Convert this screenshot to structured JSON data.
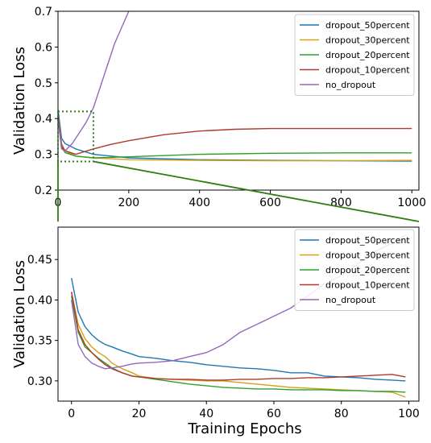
{
  "chart_data": [
    {
      "type": "line",
      "ylabel": "Validation Loss",
      "xlim": [
        0,
        1020
      ],
      "ylim": [
        0.2,
        0.7
      ],
      "x_ticks": [
        0,
        200,
        400,
        600,
        800,
        1000
      ],
      "y_ticks": [
        0.2,
        0.3,
        0.4,
        0.5,
        0.6,
        0.7
      ],
      "legend_position": "top-right",
      "grid": false,
      "series": [
        {
          "name": "dropout_50percent",
          "color": "#1f77b4",
          "x": [
            0,
            10,
            20,
            50,
            100,
            200,
            400,
            600,
            800,
            1000
          ],
          "values": [
            0.425,
            0.345,
            0.33,
            0.315,
            0.3,
            0.29,
            0.285,
            0.283,
            0.282,
            0.281
          ]
        },
        {
          "name": "dropout_30percent",
          "color": "#d4a017",
          "x": [
            0,
            10,
            20,
            50,
            100,
            200,
            400,
            600,
            800,
            1000
          ],
          "values": [
            0.41,
            0.33,
            0.31,
            0.295,
            0.29,
            0.285,
            0.283,
            0.282,
            0.282,
            0.283
          ]
        },
        {
          "name": "dropout_20percent",
          "color": "#2ca02c",
          "x": [
            0,
            10,
            20,
            50,
            100,
            200,
            400,
            600,
            800,
            1000
          ],
          "values": [
            0.405,
            0.32,
            0.305,
            0.295,
            0.29,
            0.293,
            0.3,
            0.303,
            0.304,
            0.304
          ]
        },
        {
          "name": "dropout_10percent",
          "color": "#b03a2e",
          "x": [
            0,
            10,
            20,
            50,
            100,
            150,
            200,
            300,
            400,
            500,
            600,
            800,
            1000
          ],
          "values": [
            0.41,
            0.325,
            0.31,
            0.3,
            0.315,
            0.328,
            0.338,
            0.355,
            0.365,
            0.37,
            0.372,
            0.372,
            0.372
          ]
        },
        {
          "name": "no_dropout",
          "color": "#9467bd",
          "x": [
            0,
            10,
            20,
            40,
            60,
            80,
            100,
            130,
            160,
            200
          ],
          "values": [
            0.4,
            0.315,
            0.31,
            0.33,
            0.36,
            0.39,
            0.43,
            0.52,
            0.61,
            0.7
          ]
        }
      ]
    },
    {
      "type": "line",
      "xlabel": "Training Epochs",
      "ylabel": "Validation Loss",
      "xlim": [
        -4,
        103
      ],
      "ylim": [
        0.275,
        0.49
      ],
      "x_ticks": [
        0,
        20,
        40,
        60,
        80,
        100
      ],
      "y_ticks": [
        0.3,
        0.35,
        0.4,
        0.45
      ],
      "y_tick_labels": [
        "0.30",
        "0.35",
        "0.40",
        "0.45"
      ],
      "legend_position": "top-right",
      "grid": false,
      "series": [
        {
          "name": "dropout_50percent",
          "color": "#1f77b4",
          "x": [
            0,
            2,
            4,
            6,
            8,
            10,
            12,
            15,
            18,
            20,
            25,
            30,
            35,
            40,
            45,
            50,
            55,
            60,
            65,
            70,
            75,
            80,
            85,
            90,
            95,
            99
          ],
          "values": [
            0.427,
            0.385,
            0.367,
            0.357,
            0.35,
            0.345,
            0.342,
            0.337,
            0.333,
            0.33,
            0.328,
            0.325,
            0.323,
            0.32,
            0.318,
            0.316,
            0.315,
            0.313,
            0.31,
            0.31,
            0.306,
            0.305,
            0.304,
            0.302,
            0.301,
            0.3
          ]
        },
        {
          "name": "dropout_30percent",
          "color": "#d4a017",
          "x": [
            0,
            2,
            4,
            6,
            8,
            10,
            12,
            15,
            18,
            20,
            25,
            30,
            35,
            40,
            45,
            50,
            55,
            60,
            65,
            70,
            75,
            80,
            85,
            90,
            95,
            99
          ],
          "values": [
            0.41,
            0.37,
            0.352,
            0.342,
            0.335,
            0.33,
            0.322,
            0.315,
            0.31,
            0.306,
            0.303,
            0.302,
            0.301,
            0.3,
            0.3,
            0.298,
            0.296,
            0.294,
            0.292,
            0.291,
            0.29,
            0.289,
            0.288,
            0.287,
            0.286,
            0.28
          ]
        },
        {
          "name": "dropout_20percent",
          "color": "#2ca02c",
          "x": [
            0,
            2,
            4,
            6,
            8,
            10,
            12,
            15,
            18,
            20,
            25,
            30,
            35,
            40,
            45,
            50,
            55,
            60,
            65,
            70,
            75,
            80,
            85,
            90,
            95,
            99
          ],
          "values": [
            0.405,
            0.36,
            0.342,
            0.335,
            0.328,
            0.322,
            0.316,
            0.31,
            0.306,
            0.305,
            0.302,
            0.299,
            0.296,
            0.294,
            0.292,
            0.291,
            0.29,
            0.29,
            0.289,
            0.289,
            0.289,
            0.288,
            0.288,
            0.287,
            0.287,
            0.286
          ]
        },
        {
          "name": "dropout_10percent",
          "color": "#b03a2e",
          "x": [
            0,
            2,
            4,
            6,
            8,
            10,
            12,
            15,
            18,
            20,
            25,
            30,
            35,
            40,
            45,
            50,
            55,
            60,
            65,
            70,
            75,
            80,
            85,
            90,
            95,
            99
          ],
          "values": [
            0.41,
            0.363,
            0.345,
            0.335,
            0.327,
            0.32,
            0.315,
            0.31,
            0.306,
            0.305,
            0.303,
            0.302,
            0.302,
            0.301,
            0.301,
            0.302,
            0.302,
            0.303,
            0.303,
            0.304,
            0.304,
            0.305,
            0.306,
            0.307,
            0.308,
            0.305
          ]
        },
        {
          "name": "no_dropout",
          "color": "#9467bd",
          "x": [
            0,
            2,
            4,
            6,
            8,
            10,
            12,
            15,
            18,
            20,
            25,
            30,
            35,
            40,
            45,
            50,
            55,
            60,
            65,
            70,
            75,
            80,
            85,
            90,
            95,
            99
          ],
          "values": [
            0.4,
            0.345,
            0.33,
            0.322,
            0.318,
            0.315,
            0.316,
            0.318,
            0.321,
            0.322,
            0.323,
            0.325,
            0.33,
            0.335,
            0.345,
            0.36,
            0.37,
            0.38,
            0.39,
            0.405,
            0.42,
            0.43,
            0.445,
            0.46,
            0.47,
            0.48
          ]
        }
      ]
    }
  ]
}
